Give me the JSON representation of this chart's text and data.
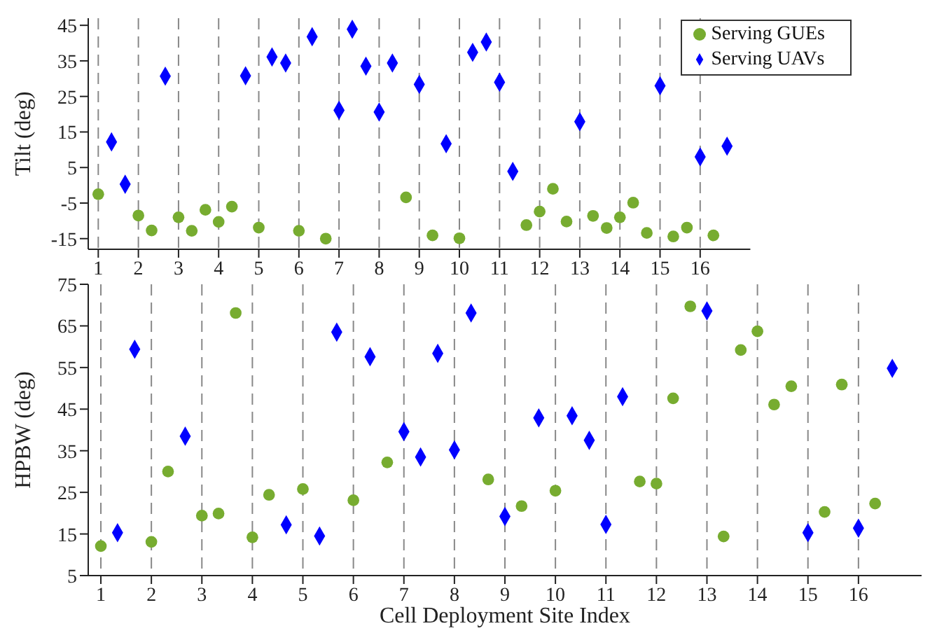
{
  "chart_data": [
    {
      "type": "scatter",
      "ylabel": "Tilt (deg)",
      "xlim": [
        0.75,
        17.25
      ],
      "xticks": [
        1,
        2,
        3,
        4,
        5,
        6,
        7,
        8,
        9,
        10,
        11,
        12,
        13,
        14,
        15,
        16
      ],
      "ylim": [
        -18,
        47
      ],
      "yticks": [
        -15,
        -5,
        5,
        15,
        25,
        35,
        45
      ],
      "grid": "x",
      "legend": "top right",
      "series": [
        {
          "name": "Serving GUEs",
          "color": "#77ac30",
          "marker": "circle",
          "x": [
            1,
            2,
            2.33,
            3,
            3.33,
            3.67,
            4,
            4.33,
            5,
            6,
            6.67,
            8.67,
            9.33,
            10,
            11.67,
            12,
            12.33,
            12.67,
            13.33,
            13.67,
            14,
            14.33,
            14.67,
            15.33,
            15.67,
            16.33
          ],
          "values": [
            -2.5,
            -8.5,
            -12.7,
            -9,
            -12.8,
            -6.9,
            -10.3,
            -6,
            -11.9,
            -12.8,
            -15,
            -3.4,
            -14.1,
            -14.9,
            -11.2,
            -7.4,
            -1,
            -10.2,
            -8.6,
            -12,
            -9,
            -4.9,
            -13.4,
            -14.4,
            -11.9,
            -14.1
          ]
        },
        {
          "name": "Serving UAVs",
          "color": "#0000ff",
          "marker": "diamond",
          "x": [
            1.33,
            1.67,
            2.67,
            4.67,
            5.33,
            5.67,
            6.33,
            7,
            7.33,
            7.67,
            8,
            8.33,
            9,
            9.67,
            10.33,
            10.67,
            11,
            11.33,
            13,
            15,
            16,
            16.67
          ],
          "values": [
            12.2,
            0.3,
            30.7,
            30.8,
            36.1,
            34.4,
            41.8,
            21.1,
            43.9,
            33.5,
            20.6,
            34.4,
            28.4,
            11.7,
            37.4,
            40.3,
            29,
            3.9,
            17.9,
            28,
            8,
            11
          ]
        }
      ]
    },
    {
      "type": "scatter",
      "ylabel": "HPBW (deg)",
      "xlabel": "Cell Deployment Site Index",
      "xlim": [
        0.75,
        17.25
      ],
      "xticks": [
        1,
        2,
        3,
        4,
        5,
        6,
        7,
        8,
        9,
        10,
        11,
        12,
        13,
        14,
        15,
        16
      ],
      "ylim": [
        5,
        75
      ],
      "yticks": [
        5,
        15,
        25,
        35,
        45,
        55,
        65,
        75
      ],
      "grid": "x",
      "series": [
        {
          "color": "#77ac30",
          "marker": "circle",
          "x": [
            1,
            2,
            2.33,
            3,
            3.33,
            3.67,
            4,
            4.33,
            5,
            6,
            6.67,
            8.67,
            9.33,
            10,
            11.67,
            12,
            12.33,
            12.67,
            13.33,
            13.67,
            14,
            14.33,
            14.67,
            15.33,
            15.67,
            16.33
          ],
          "values": [
            12.1,
            13.1,
            30,
            19.4,
            19.9,
            68.1,
            14.2,
            24.4,
            25.8,
            23.1,
            32.2,
            28.1,
            21.7,
            25.4,
            27.6,
            27.1,
            47.6,
            69.7,
            14.4,
            59.2,
            63.7,
            46.1,
            50.5,
            20.3,
            50.9,
            22.3
          ]
        },
        {
          "color": "#0000ff",
          "marker": "diamond",
          "x": [
            1.33,
            1.67,
            2.67,
            4.67,
            5.33,
            5.67,
            6.33,
            7,
            7.33,
            7.67,
            8,
            8.33,
            9,
            9.67,
            10.33,
            10.67,
            11,
            11.33,
            13,
            15,
            16,
            16.67
          ],
          "values": [
            15.3,
            59.4,
            38.5,
            17.2,
            14.5,
            63.5,
            57.6,
            39.6,
            33.5,
            58.4,
            35.2,
            68.1,
            19.2,
            42.9,
            43.4,
            37.5,
            17.3,
            48,
            68.6,
            15.3,
            16.4,
            54.8
          ]
        }
      ]
    }
  ]
}
